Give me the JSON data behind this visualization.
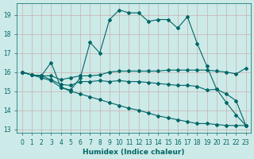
{
  "xlabel": "Humidex (Indice chaleur)",
  "background_color": "#cceae8",
  "grid_color": "#c8b0b0",
  "line_color": "#006666",
  "xlim": [
    -0.5,
    23.5
  ],
  "ylim": [
    12.8,
    19.6
  ],
  "yticks": [
    13,
    14,
    15,
    16,
    17,
    18,
    19
  ],
  "xticks": [
    0,
    1,
    2,
    3,
    4,
    5,
    6,
    7,
    8,
    9,
    10,
    11,
    12,
    13,
    14,
    15,
    16,
    17,
    18,
    19,
    20,
    21,
    22,
    23
  ],
  "lines": [
    {
      "x": [
        0,
        1,
        2,
        3,
        4,
        5,
        6,
        7,
        8,
        9,
        10,
        11,
        12,
        13,
        14,
        15,
        16,
        17,
        18,
        19,
        20,
        21,
        22,
        23
      ],
      "y": [
        16.0,
        15.85,
        15.8,
        16.5,
        15.2,
        15.05,
        15.7,
        17.55,
        17.0,
        18.75,
        19.25,
        19.1,
        19.1,
        18.65,
        18.75,
        18.75,
        18.3,
        18.9,
        17.5,
        16.3,
        15.1,
        14.4,
        13.75,
        13.2
      ]
    },
    {
      "x": [
        0,
        1,
        2,
        3,
        4,
        5,
        6,
        7,
        8,
        9,
        10,
        11,
        12,
        13,
        14,
        15,
        16,
        17,
        18,
        19,
        20,
        21,
        22,
        23
      ],
      "y": [
        16.0,
        15.85,
        15.8,
        15.8,
        15.6,
        15.7,
        15.8,
        15.8,
        15.85,
        16.0,
        16.05,
        16.05,
        16.05,
        16.05,
        16.05,
        16.1,
        16.1,
        16.1,
        16.1,
        16.1,
        16.05,
        16.0,
        15.9,
        16.2
      ]
    },
    {
      "x": [
        0,
        1,
        2,
        3,
        4,
        5,
        6,
        7,
        8,
        9,
        10,
        11,
        12,
        13,
        14,
        15,
        16,
        17,
        18,
        19,
        20,
        21,
        22,
        23
      ],
      "y": [
        16.0,
        15.85,
        15.8,
        15.6,
        15.35,
        15.3,
        15.5,
        15.5,
        15.55,
        15.5,
        15.55,
        15.5,
        15.5,
        15.45,
        15.4,
        15.35,
        15.3,
        15.3,
        15.25,
        15.05,
        15.1,
        14.85,
        14.5,
        13.2
      ]
    },
    {
      "x": [
        0,
        1,
        2,
        3,
        4,
        5,
        6,
        7,
        8,
        9,
        10,
        11,
        12,
        13,
        14,
        15,
        16,
        17,
        18,
        19,
        20,
        21,
        22,
        23
      ],
      "y": [
        16.0,
        15.85,
        15.7,
        15.55,
        15.2,
        15.0,
        14.85,
        14.7,
        14.55,
        14.4,
        14.25,
        14.1,
        14.0,
        13.85,
        13.7,
        13.6,
        13.5,
        13.4,
        13.3,
        13.3,
        13.25,
        13.2,
        13.2,
        13.2
      ]
    }
  ]
}
